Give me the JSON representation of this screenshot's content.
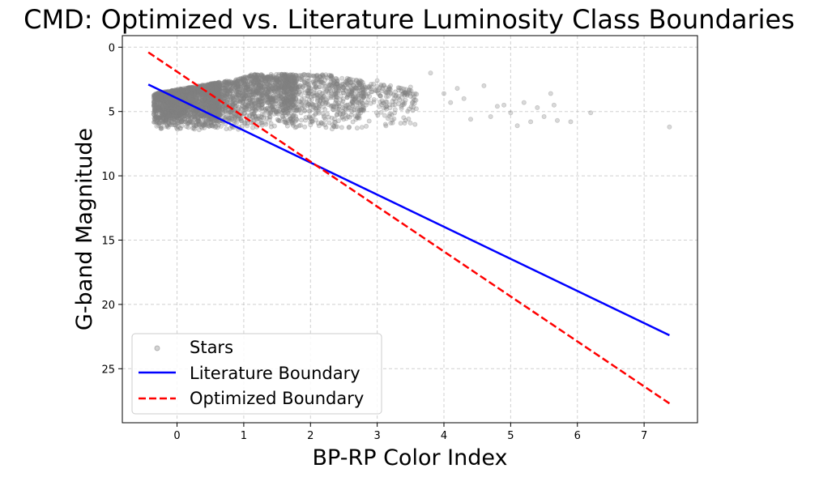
{
  "chart_data": {
    "type": "scatter",
    "title": "CMD: Optimized vs. Literature Luminosity Class Boundaries",
    "xlabel": "BP-RP Color Index",
    "ylabel": "G-band Magnitude",
    "xlim": [
      -0.82,
      7.8
    ],
    "ylim": [
      29.2,
      -0.9
    ],
    "y_inverted": true,
    "grid": true,
    "xticks": [
      0,
      1,
      2,
      3,
      4,
      5,
      6,
      7
    ],
    "yticks": [
      0,
      5,
      10,
      15,
      20,
      25
    ],
    "legend_position": "lower-left",
    "colors": {
      "stars": "#808080",
      "literature": "#0000ff",
      "optimized": "#ff0000"
    },
    "series": [
      {
        "name": "Stars",
        "kind": "scatter",
        "note_generation": "dense cloud of roughly 7000 stars; x from -0.4 to 7.4, y (mag) from about 2 to 6.5",
        "dense_region": {
          "x_range": [
            -0.4,
            3.6
          ],
          "y_range": [
            2.0,
            6.5
          ]
        },
        "sparse_points": [
          [
            3.8,
            2.0
          ],
          [
            4.1,
            4.3
          ],
          [
            4.2,
            3.2
          ],
          [
            4.4,
            5.6
          ],
          [
            4.6,
            3.0
          ],
          [
            4.7,
            5.4
          ],
          [
            4.9,
            4.5
          ],
          [
            5.0,
            5.1
          ],
          [
            5.1,
            6.1
          ],
          [
            5.2,
            4.3
          ],
          [
            5.3,
            5.8
          ],
          [
            5.4,
            4.7
          ],
          [
            5.5,
            5.4
          ],
          [
            5.6,
            3.6
          ],
          [
            5.65,
            4.5
          ],
          [
            5.7,
            5.7
          ],
          [
            5.9,
            5.8
          ],
          [
            6.2,
            5.1
          ],
          [
            7.38,
            6.2
          ],
          [
            3.2,
            3.0
          ],
          [
            3.5,
            3.1
          ],
          [
            3.0,
            2.6
          ],
          [
            2.6,
            3.6
          ],
          [
            2.3,
            2.9
          ],
          [
            4.0,
            3.6
          ],
          [
            4.3,
            4.0
          ],
          [
            4.8,
            4.6
          ]
        ]
      },
      {
        "name": "Literature Boundary",
        "kind": "line",
        "x": [
          -0.43,
          7.38
        ],
        "y": [
          2.9,
          22.4
        ]
      },
      {
        "name": "Optimized Boundary",
        "kind": "line",
        "style": "dashed",
        "x": [
          -0.43,
          7.38
        ],
        "y": [
          0.4,
          27.7
        ]
      }
    ]
  }
}
